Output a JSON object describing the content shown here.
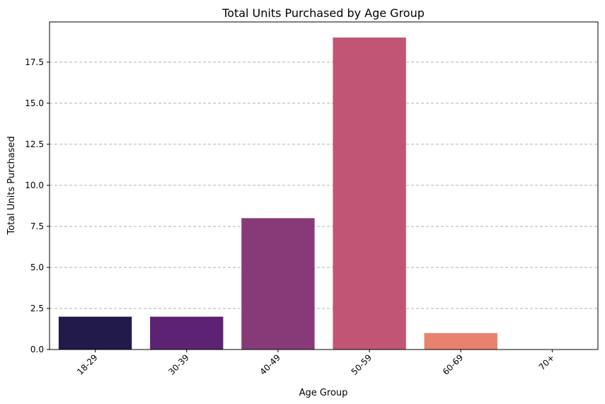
{
  "chart_data": {
    "type": "bar",
    "title": "Total Units Purchased by Age Group",
    "xlabel": "Age Group",
    "ylabel": "Total Units Purchased",
    "categories": [
      "18-29",
      "30-39",
      "40-49",
      "50-59",
      "60-69",
      "70+"
    ],
    "values": [
      2,
      2,
      8,
      19,
      1,
      0
    ],
    "colors": [
      "#221a4a",
      "#5d2274",
      "#873a77",
      "#c15574",
      "#e8816e",
      "#f3b98d"
    ],
    "ylim": [
      0,
      19.95
    ],
    "yticks": [
      0,
      2.5,
      5,
      7.5,
      10,
      12.5,
      15,
      17.5
    ],
    "ytick_labels": [
      "0.0",
      "2.5",
      "5.0",
      "7.5",
      "10.0",
      "12.5",
      "15.0",
      "17.5"
    ],
    "grid": "y-dashed",
    "legend": "none"
  }
}
